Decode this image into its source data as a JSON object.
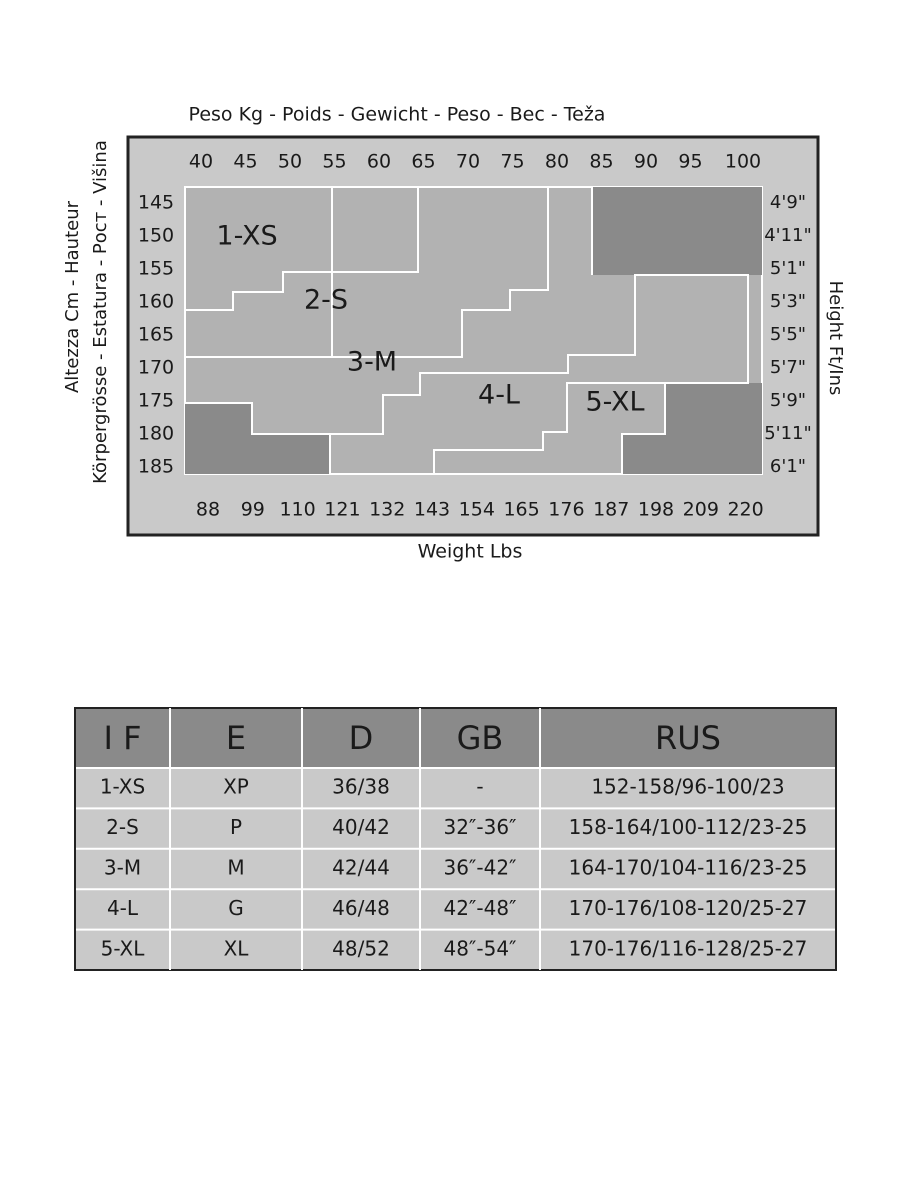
{
  "chart": {
    "top_label": "Peso Kg - Poids - Gewicht - Peso - Вес - Teža",
    "left_label": [
      "Altezza Cm - Hauteur",
      "Körpergrösse - Estatura - Рост - Višina"
    ],
    "right_label": "Height Ft/Ins",
    "bottom_label": "Weight Lbs",
    "kg": [
      40,
      45,
      50,
      55,
      60,
      65,
      70,
      75,
      80,
      85,
      90,
      95,
      100
    ],
    "cm": [
      145,
      150,
      155,
      160,
      165,
      170,
      175,
      180,
      185
    ],
    "ft_in": [
      "4'9\"",
      "4'11\"",
      "5'1\"",
      "5'3\"",
      "5'5\"",
      "5'7\"",
      "5'9\"",
      "5'11\"",
      "6'1\""
    ],
    "lbs": [
      88,
      99,
      110,
      121,
      132,
      143,
      154,
      165,
      176,
      187,
      198,
      209,
      220
    ],
    "sizes": [
      "1-XS",
      "2-S",
      "3-M",
      "4-L",
      "5-XL"
    ]
  },
  "table": {
    "header": [
      "I F",
      "E",
      "D",
      "GB",
      "RUS"
    ],
    "rows": [
      [
        "1-XS",
        "XP",
        "36/38",
        "-",
        "152-158/96-100/23"
      ],
      [
        "2-S",
        "P",
        "40/42",
        "32″-36″",
        "158-164/100-112/23-25"
      ],
      [
        "3-M",
        "M",
        "42/44",
        "36″-42″",
        "164-170/104-116/23-25"
      ],
      [
        "4-L",
        "G",
        "46/48",
        "42″-48″",
        "170-176/108-120/25-27"
      ],
      [
        "5-XL",
        "XL",
        "48/52",
        "48″-54″",
        "170-176/116-128/25-27"
      ]
    ]
  }
}
